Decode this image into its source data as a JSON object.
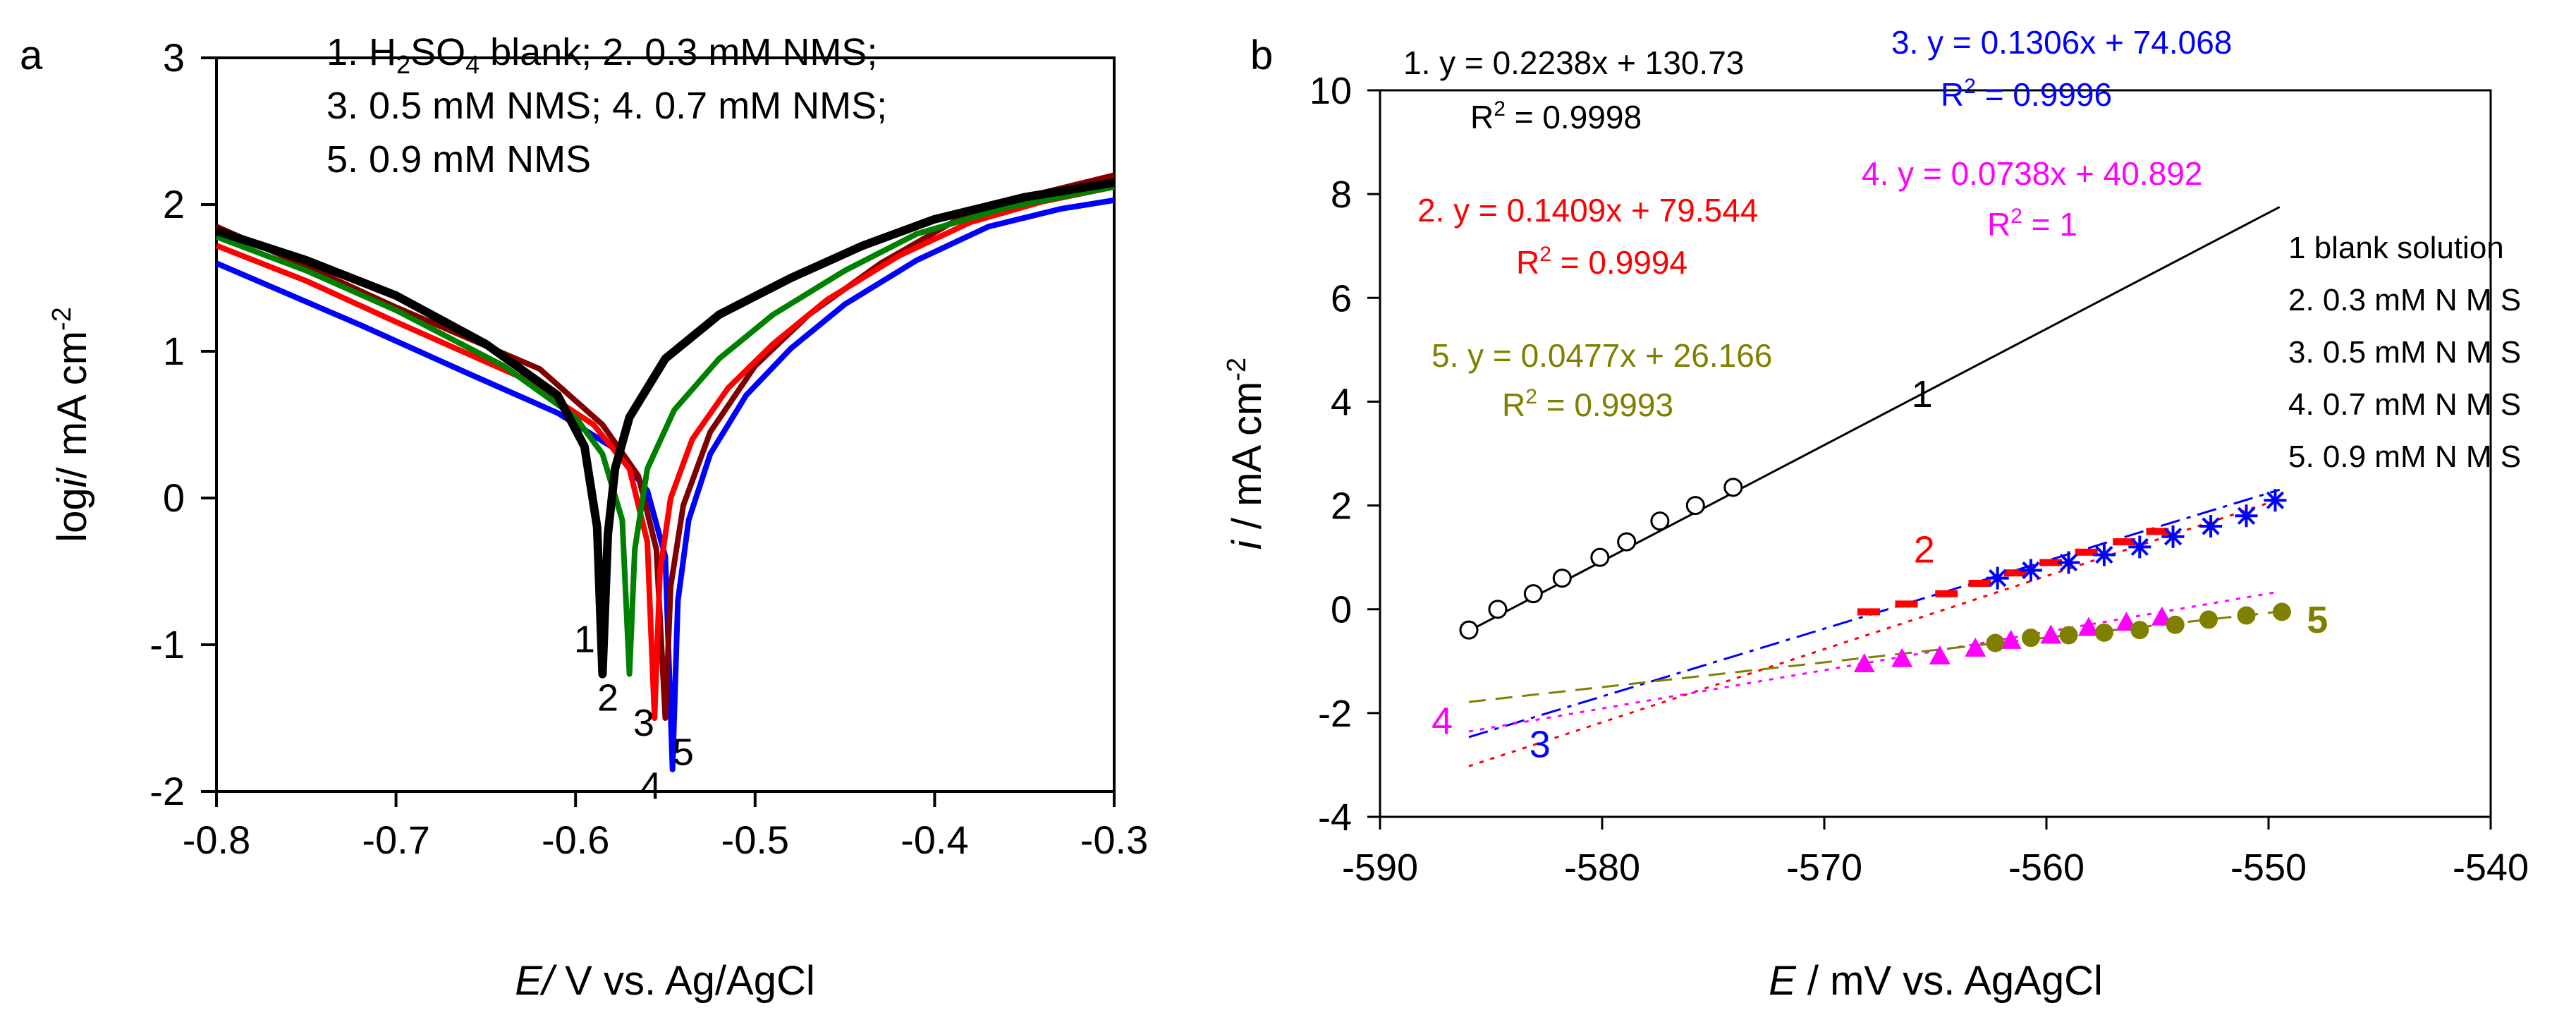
{
  "chart_data": [
    {
      "panel": "a",
      "type": "line",
      "xlabel_var": "E/",
      "xlabel_rest": " V vs. Ag/AgCl",
      "ylabel_var_prefix": "log",
      "ylabel_var": "i",
      "ylabel_rest": "/ mA cm",
      "ylabel_sup": "-2",
      "xlim": [
        -0.8,
        -0.3
      ],
      "ylim": [
        -2,
        3
      ],
      "xticks": [
        -0.8,
        -0.7,
        -0.6,
        -0.5,
        -0.4,
        -0.3
      ],
      "xtick_labels": [
        "-0.8",
        "-0.7",
        "-0.6",
        "-0.5",
        "-0.4",
        "-0.3"
      ],
      "yticks": [
        -2,
        -1,
        0,
        1,
        2,
        3
      ],
      "ytick_labels": [
        "-2",
        "-1",
        "0",
        "1",
        "2",
        "3"
      ],
      "legend": {
        "line1_a": "1. H",
        "line1_sub": "2",
        "line1_b": "SO",
        "line1_sub2": "4",
        "line1_c": " blank;  2. 0.3 mM NMS;",
        "line2": "3. 0.5 mM NMS; 4. 0.7 mM NMS;",
        "line3": "5. 0.9 mM NMS",
        "placement": "top"
      },
      "series": [
        {
          "name": "1",
          "color": "#000000",
          "Ecorr": -0.585,
          "min_logi": -1.2,
          "anodic": [
            [
              -0.585,
              -1.2
            ],
            [
              -0.582,
              -0.25
            ],
            [
              -0.578,
              0.2
            ],
            [
              -0.57,
              0.55
            ],
            [
              -0.55,
              0.95
            ],
            [
              -0.52,
              1.25
            ],
            [
              -0.48,
              1.5
            ],
            [
              -0.44,
              1.72
            ],
            [
              -0.4,
              1.9
            ],
            [
              -0.35,
              2.05
            ],
            [
              -0.3,
              2.15
            ]
          ],
          "cathodic": [
            [
              -0.585,
              -1.2
            ],
            [
              -0.588,
              -0.2
            ],
            [
              -0.595,
              0.35
            ],
            [
              -0.61,
              0.7
            ],
            [
              -0.65,
              1.05
            ],
            [
              -0.7,
              1.38
            ],
            [
              -0.75,
              1.62
            ],
            [
              -0.8,
              1.82
            ]
          ]
        },
        {
          "name": "2",
          "color": "#008000",
          "Ecorr": -0.57,
          "min_logi": -1.2,
          "anodic": [
            [
              -0.57,
              -1.2
            ],
            [
              -0.567,
              -0.35
            ],
            [
              -0.56,
              0.2
            ],
            [
              -0.545,
              0.6
            ],
            [
              -0.52,
              0.95
            ],
            [
              -0.49,
              1.25
            ],
            [
              -0.45,
              1.55
            ],
            [
              -0.41,
              1.8
            ],
            [
              -0.36,
              1.98
            ],
            [
              -0.3,
              2.12
            ]
          ],
          "cathodic": [
            [
              -0.57,
              -1.2
            ],
            [
              -0.574,
              -0.15
            ],
            [
              -0.585,
              0.3
            ],
            [
              -0.6,
              0.55
            ],
            [
              -0.64,
              0.9
            ],
            [
              -0.7,
              1.28
            ],
            [
              -0.75,
              1.55
            ],
            [
              -0.8,
              1.78
            ]
          ]
        },
        {
          "name": "3",
          "color": "#ff0000",
          "Ecorr": -0.556,
          "min_logi": -1.5,
          "anodic": [
            [
              -0.556,
              -1.5
            ],
            [
              -0.553,
              -0.5
            ],
            [
              -0.547,
              0.0
            ],
            [
              -0.535,
              0.4
            ],
            [
              -0.515,
              0.75
            ],
            [
              -0.49,
              1.05
            ],
            [
              -0.46,
              1.35
            ],
            [
              -0.42,
              1.65
            ],
            [
              -0.38,
              1.88
            ],
            [
              -0.34,
              2.02
            ],
            [
              -0.3,
              2.12
            ]
          ],
          "cathodic": [
            [
              -0.556,
              -1.5
            ],
            [
              -0.56,
              -0.3
            ],
            [
              -0.57,
              0.2
            ],
            [
              -0.59,
              0.5
            ],
            [
              -0.63,
              0.82
            ],
            [
              -0.7,
              1.2
            ],
            [
              -0.75,
              1.48
            ],
            [
              -0.8,
              1.72
            ]
          ]
        },
        {
          "name": "4",
          "color": "#800000",
          "Ecorr": -0.55,
          "min_logi": -1.5,
          "anodic": [
            [
              -0.55,
              -1.5
            ],
            [
              -0.547,
              -0.6
            ],
            [
              -0.54,
              -0.05
            ],
            [
              -0.525,
              0.45
            ],
            [
              -0.5,
              0.9
            ],
            [
              -0.47,
              1.25
            ],
            [
              -0.43,
              1.6
            ],
            [
              -0.39,
              1.88
            ],
            [
              -0.35,
              2.05
            ],
            [
              -0.3,
              2.2
            ]
          ],
          "cathodic": [
            [
              -0.55,
              -1.5
            ],
            [
              -0.555,
              -0.35
            ],
            [
              -0.565,
              0.15
            ],
            [
              -0.585,
              0.5
            ],
            [
              -0.62,
              0.88
            ],
            [
              -0.7,
              1.3
            ],
            [
              -0.75,
              1.58
            ],
            [
              -0.8,
              1.85
            ]
          ]
        },
        {
          "name": "5",
          "color": "#0000ff",
          "Ecorr": -0.546,
          "min_logi": -1.85,
          "anodic": [
            [
              -0.546,
              -1.85
            ],
            [
              -0.543,
              -0.7
            ],
            [
              -0.537,
              -0.15
            ],
            [
              -0.525,
              0.3
            ],
            [
              -0.505,
              0.7
            ],
            [
              -0.48,
              1.02
            ],
            [
              -0.45,
              1.32
            ],
            [
              -0.41,
              1.62
            ],
            [
              -0.37,
              1.85
            ],
            [
              -0.33,
              1.97
            ],
            [
              -0.3,
              2.03
            ]
          ],
          "cathodic": [
            [
              -0.546,
              -1.85
            ],
            [
              -0.55,
              -0.4
            ],
            [
              -0.56,
              0.05
            ],
            [
              -0.58,
              0.35
            ],
            [
              -0.61,
              0.58
            ],
            [
              -0.66,
              0.85
            ],
            [
              -0.72,
              1.18
            ],
            [
              -0.8,
              1.6
            ]
          ]
        }
      ],
      "curve_labels": [
        {
          "text": "1",
          "x": -0.595,
          "y": -1.05
        },
        {
          "text": "2",
          "x": -0.582,
          "y": -1.45
        },
        {
          "text": "3",
          "x": -0.562,
          "y": -1.62
        },
        {
          "text": "4",
          "x": -0.558,
          "y": -2.05
        },
        {
          "text": "5",
          "x": -0.54,
          "y": -1.82
        }
      ]
    },
    {
      "panel": "b",
      "type": "scatter",
      "xlabel_var": "E",
      "xlabel_rest": " / mV  vs.  AgAgCl",
      "ylabel_var": "i",
      "ylabel_rest": " / mA cm",
      "ylabel_sup": "-2",
      "xlim": [
        -590,
        -540
      ],
      "ylim": [
        -4,
        10
      ],
      "xticks": [
        -590,
        -580,
        -570,
        -560,
        -550,
        -540
      ],
      "xtick_labels": [
        "-590",
        "-580",
        "-570",
        "-560",
        "-550",
        "-540"
      ],
      "yticks": [
        -4,
        -2,
        0,
        2,
        4,
        6,
        8,
        10
      ],
      "ytick_labels": [
        "-4",
        "-2",
        "0",
        "2",
        "4",
        "6",
        "8",
        "10"
      ],
      "legend": {
        "items": [
          "1 blank solution",
          "2. 0.3 mM N M S",
          "3. 0.5 mM N M S",
          "4. 0.7 mM N M S",
          "5. 0.9 mM N M S"
        ],
        "placement": "right"
      },
      "series": [
        {
          "name": "1",
          "color": "#000000",
          "marker": "open-circle",
          "line": "solid",
          "slope": 0.2238,
          "intercept": 130.73,
          "fit_range": [
            -586,
            -549.5
          ],
          "x": [
            -586,
            -584.7,
            -583.1,
            -581.8,
            -580.1,
            -578.9,
            -577.4,
            -575.8,
            -574.1
          ],
          "y": [
            -0.4,
            0.0,
            0.3,
            0.6,
            1.0,
            1.3,
            1.7,
            2.0,
            2.35
          ],
          "equation": "1. y = 0.2238x + 130.73",
          "r2_prefix": "R",
          "r2_sup": "2",
          "r2_rest": " = 0.9998",
          "curve_label": "1",
          "curve_label_pos": [
            -565.6,
            3.9
          ]
        },
        {
          "name": "2",
          "color": "#ff0000",
          "marker": "dash",
          "line": "dotted",
          "slope": 0.1409,
          "intercept": 79.544,
          "fit_range": [
            -586,
            -549.5
          ],
          "x": [
            -568,
            -566.3,
            -564.5,
            -563,
            -561.4,
            -559.8,
            -558.2,
            -556.5,
            -555.0
          ],
          "y": [
            -0.05,
            0.1,
            0.3,
            0.5,
            0.7,
            0.9,
            1.1,
            1.3,
            1.5
          ],
          "equation": "2. y = 0.1409x + 79.544",
          "r2_prefix": "R",
          "r2_sup": "2",
          "r2_rest": " = 0.9994",
          "curve_label": "2",
          "curve_label_pos": [
            -565.5,
            0.9
          ]
        },
        {
          "name": "3",
          "color": "#0000ff",
          "marker": "asterisk",
          "line": "dashdot",
          "slope": 0.1306,
          "intercept": 74.068,
          "fit_range": [
            -586,
            -549.5
          ],
          "x": [
            -562.2,
            -560.7,
            -559.0,
            -557.4,
            -555.8,
            -554.3,
            -552.6,
            -551.0,
            -549.7
          ],
          "y": [
            0.6,
            0.75,
            0.9,
            1.05,
            1.2,
            1.4,
            1.6,
            1.8,
            2.1
          ],
          "equation": "3. y = 0.1306x + 74.068",
          "r2_prefix": "R",
          "r2_sup": "2",
          "r2_rest": " = 0.9996",
          "curve_label": "3",
          "curve_label_pos": [
            -582.8,
            -2.85
          ]
        },
        {
          "name": "4",
          "color": "#ff00ff",
          "marker": "triangle",
          "line": "dotted",
          "slope": 0.0738,
          "intercept": 40.892,
          "fit_range": [
            -586,
            -549.5
          ],
          "x": [
            -568.2,
            -566.5,
            -564.8,
            -563.2,
            -561.6,
            -559.8,
            -558.1,
            -556.4,
            -554.8
          ],
          "y": [
            -1.05,
            -0.95,
            -0.9,
            -0.75,
            -0.6,
            -0.5,
            -0.35,
            -0.25,
            -0.15
          ],
          "equation": "4. y = 0.0738x + 40.892",
          "r2_prefix": "R",
          "r2_sup": "2",
          "r2_rest": " = 1",
          "curve_label": "4",
          "curve_label_pos": [
            -587.2,
            -2.4
          ]
        },
        {
          "name": "5",
          "color": "#808000",
          "marker": "filled-circle",
          "line": "dashed",
          "slope": 0.0477,
          "intercept": 26.166,
          "fit_range": [
            -586,
            -549.5
          ],
          "x": [
            -562.3,
            -560.7,
            -559.0,
            -557.4,
            -555.8,
            -554.2,
            -552.7,
            -551.0,
            -549.4
          ],
          "y": [
            -0.65,
            -0.55,
            -0.5,
            -0.45,
            -0.4,
            -0.3,
            -0.2,
            -0.12,
            -0.05
          ],
          "equation": "5. y = 0.0477x + 26.166",
          "r2_prefix": "R",
          "r2_sup": "2",
          "r2_rest": " = 0.9993",
          "curve_label": "5",
          "curve_label_pos": [
            -547.8,
            -0.45
          ]
        }
      ]
    }
  ]
}
